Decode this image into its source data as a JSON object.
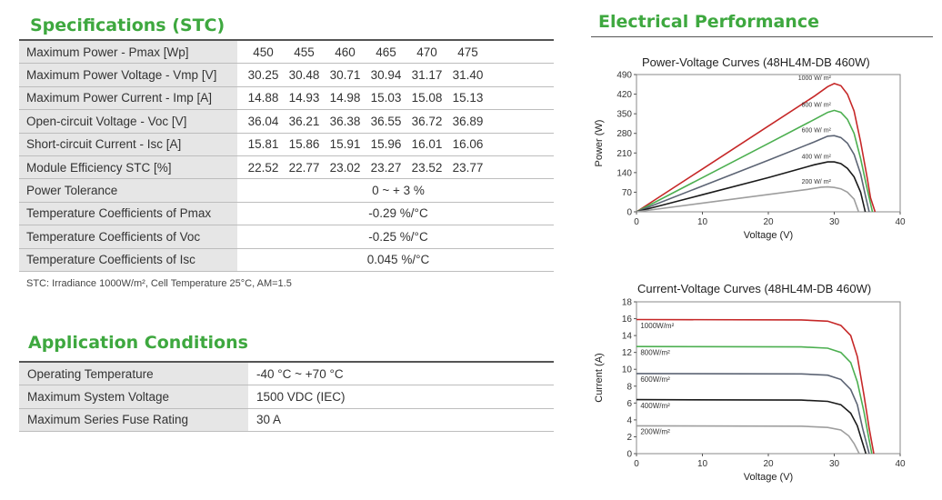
{
  "specs": {
    "title": "Specifications (STC)",
    "rows": [
      {
        "label": "Maximum Power - Pmax  [Wp]",
        "values": [
          "450",
          "455",
          "460",
          "465",
          "470",
          "475"
        ]
      },
      {
        "label": "Maximum Power Voltage - Vmp  [V]",
        "values": [
          "30.25",
          "30.48",
          "30.71",
          "30.94",
          "31.17",
          "31.40"
        ]
      },
      {
        "label": "Maximum Power Current - Imp  [A]",
        "values": [
          "14.88",
          "14.93",
          "14.98",
          "15.03",
          "15.08",
          "15.13"
        ]
      },
      {
        "label": "Open-circuit Voltage - Voc  [V]",
        "values": [
          "36.04",
          "36.21",
          "36.38",
          "36.55",
          "36.72",
          "36.89"
        ]
      },
      {
        "label": "Short-circuit Current - Isc  [A]",
        "values": [
          "15.81",
          "15.86",
          "15.91",
          "15.96",
          "16.01",
          "16.06"
        ]
      },
      {
        "label": "Module Efficiency STC  [%]",
        "values": [
          "22.52",
          "22.77",
          "23.02",
          "23.27",
          "23.52",
          "23.77"
        ]
      },
      {
        "label": "Power Tolerance",
        "value": "0 ~ + 3 %"
      },
      {
        "label": "Temperature Coefficients of Pmax",
        "value": "-0.29 %/°C"
      },
      {
        "label": "Temperature Coefficients of Voc",
        "value": "-0.25 %/°C"
      },
      {
        "label": "Temperature Coefficients of Isc",
        "value": "0.045 %/°C"
      }
    ],
    "note": "STC: Irradiance 1000W/m², Cell Temperature 25°C, AM=1.5"
  },
  "application": {
    "title": "Application Conditions",
    "rows": [
      {
        "label": "Operating Temperature",
        "value": "-40 °C ~ +70 °C"
      },
      {
        "label": "Maximum System Voltage",
        "value": "1500 VDC (IEC)"
      },
      {
        "label": "Maximum Series Fuse Rating",
        "value": "30 A"
      }
    ]
  },
  "electrical": {
    "title": "Electrical Performance"
  },
  "chart_data": [
    {
      "type": "line",
      "title": "Power-Voltage Curves (48HL4M-DB 460W)",
      "xlabel": "Voltage (V)",
      "ylabel": "Power (W)",
      "xlim": [
        0,
        40
      ],
      "ylim": [
        0,
        490
      ],
      "xticks": [
        0,
        10,
        20,
        30,
        40
      ],
      "yticks": [
        0,
        70,
        140,
        210,
        280,
        350,
        420,
        490
      ],
      "grid": false,
      "series": [
        {
          "name": "1000 W/ m²",
          "color": "#c62828",
          "points": [
            [
              0,
              0
            ],
            [
              10,
              153
            ],
            [
              20,
              306
            ],
            [
              27,
              413
            ],
            [
              29,
              447
            ],
            [
              30,
              458
            ],
            [
              31,
              450
            ],
            [
              32,
              420
            ],
            [
              33,
              360
            ],
            [
              34,
              250
            ],
            [
              35,
              120
            ],
            [
              35.5,
              50
            ],
            [
              36.2,
              0
            ]
          ]
        },
        {
          "name": "800 W/ m²",
          "color": "#4caf50",
          "points": [
            [
              0,
              0
            ],
            [
              10,
              122
            ],
            [
              20,
              244
            ],
            [
              27,
              330
            ],
            [
              29,
              355
            ],
            [
              30,
              362
            ],
            [
              31,
              355
            ],
            [
              32,
              330
            ],
            [
              33,
              280
            ],
            [
              34,
              190
            ],
            [
              35,
              80
            ],
            [
              35.8,
              0
            ]
          ]
        },
        {
          "name": "600 W/ m²",
          "color": "#5c6474",
          "points": [
            [
              0,
              0
            ],
            [
              10,
              92
            ],
            [
              20,
              184
            ],
            [
              27,
              250
            ],
            [
              29,
              270
            ],
            [
              30,
              272
            ],
            [
              31,
              265
            ],
            [
              32,
              245
            ],
            [
              33,
              205
            ],
            [
              34,
              135
            ],
            [
              34.8,
              50
            ],
            [
              35.3,
              0
            ]
          ]
        },
        {
          "name": "400 W/ m²",
          "color": "#1a1a1a",
          "points": [
            [
              0,
              0
            ],
            [
              10,
              61
            ],
            [
              20,
              122
            ],
            [
              27,
              168
            ],
            [
              29,
              178
            ],
            [
              30,
              178
            ],
            [
              31,
              172
            ],
            [
              32,
              155
            ],
            [
              33,
              125
            ],
            [
              34,
              70
            ],
            [
              34.7,
              0
            ]
          ]
        },
        {
          "name": "200 W/ m²",
          "color": "#9e9e9e",
          "points": [
            [
              0,
              0
            ],
            [
              10,
              31
            ],
            [
              20,
              62
            ],
            [
              26,
              80
            ],
            [
              28,
              88
            ],
            [
              29,
              89
            ],
            [
              30,
              87
            ],
            [
              31,
              82
            ],
            [
              32,
              70
            ],
            [
              33,
              45
            ],
            [
              33.7,
              0
            ]
          ]
        }
      ]
    },
    {
      "type": "line",
      "title": "Current-Voltage Curves (48HL4M-DB 460W)",
      "xlabel": "Voltage (V)",
      "ylabel": "Current (A)",
      "xlim": [
        0,
        40
      ],
      "ylim": [
        0,
        18
      ],
      "xticks": [
        0,
        10,
        20,
        30,
        40
      ],
      "yticks": [
        0,
        2,
        4,
        6,
        8,
        10,
        12,
        14,
        16,
        18
      ],
      "grid": false,
      "series": [
        {
          "name": "1000W/m²",
          "color": "#c62828",
          "points": [
            [
              0,
              15.9
            ],
            [
              25,
              15.85
            ],
            [
              29,
              15.7
            ],
            [
              31,
              15.2
            ],
            [
              32.5,
              14
            ],
            [
              33.5,
              11.5
            ],
            [
              34.5,
              7
            ],
            [
              35.3,
              3
            ],
            [
              36,
              0
            ]
          ]
        },
        {
          "name": "800W/m²",
          "color": "#4caf50",
          "points": [
            [
              0,
              12.7
            ],
            [
              25,
              12.65
            ],
            [
              29,
              12.5
            ],
            [
              31,
              12
            ],
            [
              32.5,
              10.8
            ],
            [
              33.5,
              8.5
            ],
            [
              34.5,
              5
            ],
            [
              35.2,
              2
            ],
            [
              35.7,
              0
            ]
          ]
        },
        {
          "name": "600W/m²",
          "color": "#5c6474",
          "points": [
            [
              0,
              9.5
            ],
            [
              25,
              9.45
            ],
            [
              29,
              9.3
            ],
            [
              31,
              8.8
            ],
            [
              32.5,
              7.6
            ],
            [
              33.5,
              5.8
            ],
            [
              34.3,
              3
            ],
            [
              35.3,
              0
            ]
          ]
        },
        {
          "name": "400W/m²",
          "color": "#1a1a1a",
          "points": [
            [
              0,
              6.4
            ],
            [
              25,
              6.35
            ],
            [
              29,
              6.2
            ],
            [
              31,
              5.8
            ],
            [
              32.5,
              4.8
            ],
            [
              33.5,
              3.3
            ],
            [
              34.2,
              1.5
            ],
            [
              34.8,
              0
            ]
          ]
        },
        {
          "name": "200W/m²",
          "color": "#9e9e9e",
          "points": [
            [
              0,
              3.3
            ],
            [
              25,
              3.25
            ],
            [
              29,
              3.1
            ],
            [
              31,
              2.8
            ],
            [
              32.2,
              2.1
            ],
            [
              33,
              1.2
            ],
            [
              33.8,
              0
            ]
          ]
        }
      ]
    }
  ]
}
